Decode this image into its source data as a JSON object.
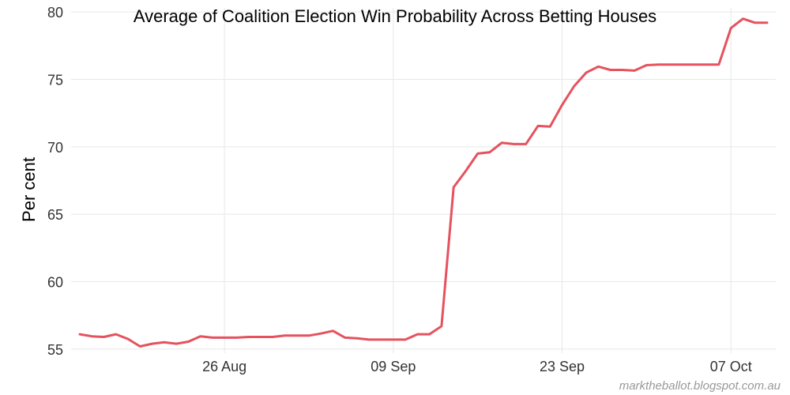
{
  "chart_data": {
    "type": "line",
    "title": "Average of Coalition Election Win Probability Across Betting Houses",
    "xlabel": "",
    "ylabel": "Per cent",
    "ylim": [
      54.7,
      80.3
    ],
    "yticks": [
      55,
      60,
      65,
      70,
      75,
      80
    ],
    "xticks": [
      {
        "date": "2013-08-26",
        "label": "26 Aug"
      },
      {
        "date": "2013-09-09",
        "label": "09 Sep"
      },
      {
        "date": "2013-09-23",
        "label": "23 Sep"
      },
      {
        "date": "2013-10-07",
        "label": "07 Oct"
      }
    ],
    "xlim": [
      "2013-08-14",
      "2013-10-10"
    ],
    "grid": true,
    "credit": "marktheballot.blogspot.com.au",
    "series": [
      {
        "color": "#e5525e",
        "x": [
          "2013-08-14",
          "2013-08-15",
          "2013-08-16",
          "2013-08-17",
          "2013-08-18",
          "2013-08-19",
          "2013-08-20",
          "2013-08-21",
          "2013-08-22",
          "2013-08-23",
          "2013-08-24",
          "2013-08-25",
          "2013-08-26",
          "2013-08-27",
          "2013-08-28",
          "2013-08-29",
          "2013-08-30",
          "2013-08-31",
          "2013-09-01",
          "2013-09-02",
          "2013-09-03",
          "2013-09-04",
          "2013-09-05",
          "2013-09-06",
          "2013-09-07",
          "2013-09-08",
          "2013-09-09",
          "2013-09-10",
          "2013-09-11",
          "2013-09-12",
          "2013-09-13",
          "2013-09-14",
          "2013-09-15",
          "2013-09-16",
          "2013-09-17",
          "2013-09-18",
          "2013-09-19",
          "2013-09-20",
          "2013-09-21",
          "2013-09-22",
          "2013-09-23",
          "2013-09-24",
          "2013-09-25",
          "2013-09-26",
          "2013-09-27",
          "2013-09-28",
          "2013-09-29",
          "2013-09-30",
          "2013-10-01",
          "2013-10-02",
          "2013-10-03",
          "2013-10-04",
          "2013-10-05",
          "2013-10-06",
          "2013-10-07",
          "2013-10-08",
          "2013-10-09",
          "2013-10-10"
        ],
        "values": [
          56.1,
          55.95,
          55.9,
          56.1,
          55.75,
          55.2,
          55.4,
          55.5,
          55.4,
          55.55,
          55.95,
          55.85,
          55.85,
          55.85,
          55.9,
          55.9,
          55.9,
          56.0,
          56.0,
          56.0,
          56.15,
          56.35,
          55.85,
          55.8,
          55.7,
          55.7,
          55.7,
          55.7,
          56.1,
          56.1,
          56.7,
          67.0,
          68.2,
          69.5,
          69.6,
          70.3,
          70.2,
          70.2,
          71.55,
          71.5,
          73.1,
          74.5,
          75.5,
          75.95,
          75.7,
          75.7,
          75.65,
          76.05,
          76.1,
          76.1,
          76.1,
          76.1,
          76.1,
          76.1,
          78.8,
          79.5,
          79.2,
          79.2
        ]
      }
    ]
  }
}
